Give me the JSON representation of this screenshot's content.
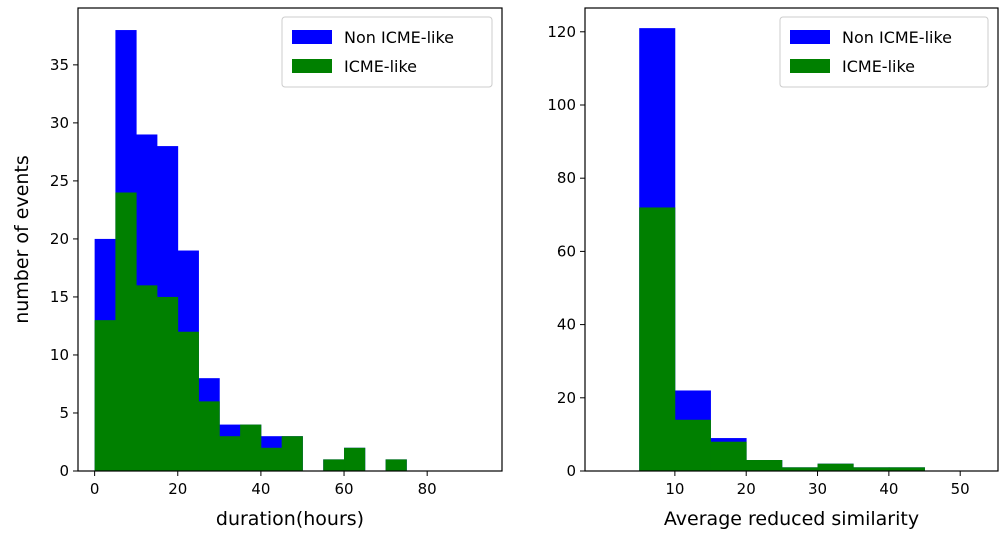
{
  "chart_data": [
    {
      "type": "bar",
      "subtype": "stacked-histogram",
      "xlabel": "duration(hours)",
      "ylabel": "number of events",
      "xlim": [
        -4,
        98
      ],
      "ylim": [
        0,
        39.9
      ],
      "xticks": [
        0,
        20,
        40,
        60,
        80
      ],
      "yticks": [
        0,
        5,
        10,
        15,
        20,
        25,
        30,
        35
      ],
      "bin_width": 5,
      "bin_starts": [
        0,
        5,
        10,
        15,
        20,
        25,
        30,
        35,
        40,
        45,
        50,
        55,
        60,
        65,
        70,
        75
      ],
      "series": [
        {
          "name": "Non ICME-like",
          "color": "#0000ff",
          "values": [
            20,
            38,
            29,
            28,
            19,
            8,
            4,
            4,
            3,
            3,
            0,
            1,
            2,
            0,
            1,
            0
          ]
        },
        {
          "name": "ICME-like",
          "color": "#008000",
          "values": [
            13,
            24,
            16,
            15,
            12,
            6,
            3,
            4,
            2,
            3,
            0,
            1,
            2,
            0,
            1,
            0
          ]
        }
      ],
      "legend": {
        "position": "top-right",
        "entries": [
          "Non ICME-like",
          "ICME-like"
        ]
      },
      "grid": false
    },
    {
      "type": "bar",
      "subtype": "stacked-histogram",
      "xlabel": "Average reduced similarity",
      "ylabel": "",
      "xlim": [
        -2.6,
        55.3
      ],
      "ylim": [
        0,
        126.5
      ],
      "xticks": [
        10,
        20,
        30,
        40,
        50
      ],
      "yticks": [
        0,
        20,
        40,
        60,
        80,
        100,
        120
      ],
      "bin_width": 5,
      "bin_starts": [
        5,
        10,
        15,
        20,
        25,
        30,
        35,
        40,
        45
      ],
      "series": [
        {
          "name": "Non ICME-like",
          "color": "#0000ff",
          "values": [
            121,
            22,
            9,
            3,
            1,
            2,
            1,
            1,
            0
          ]
        },
        {
          "name": "ICME-like",
          "color": "#008000",
          "values": [
            72,
            14,
            8,
            3,
            1,
            2,
            1,
            1,
            0
          ]
        }
      ],
      "legend": {
        "position": "top-right",
        "entries": [
          "Non ICME-like",
          "ICME-like"
        ]
      },
      "grid": false
    }
  ]
}
